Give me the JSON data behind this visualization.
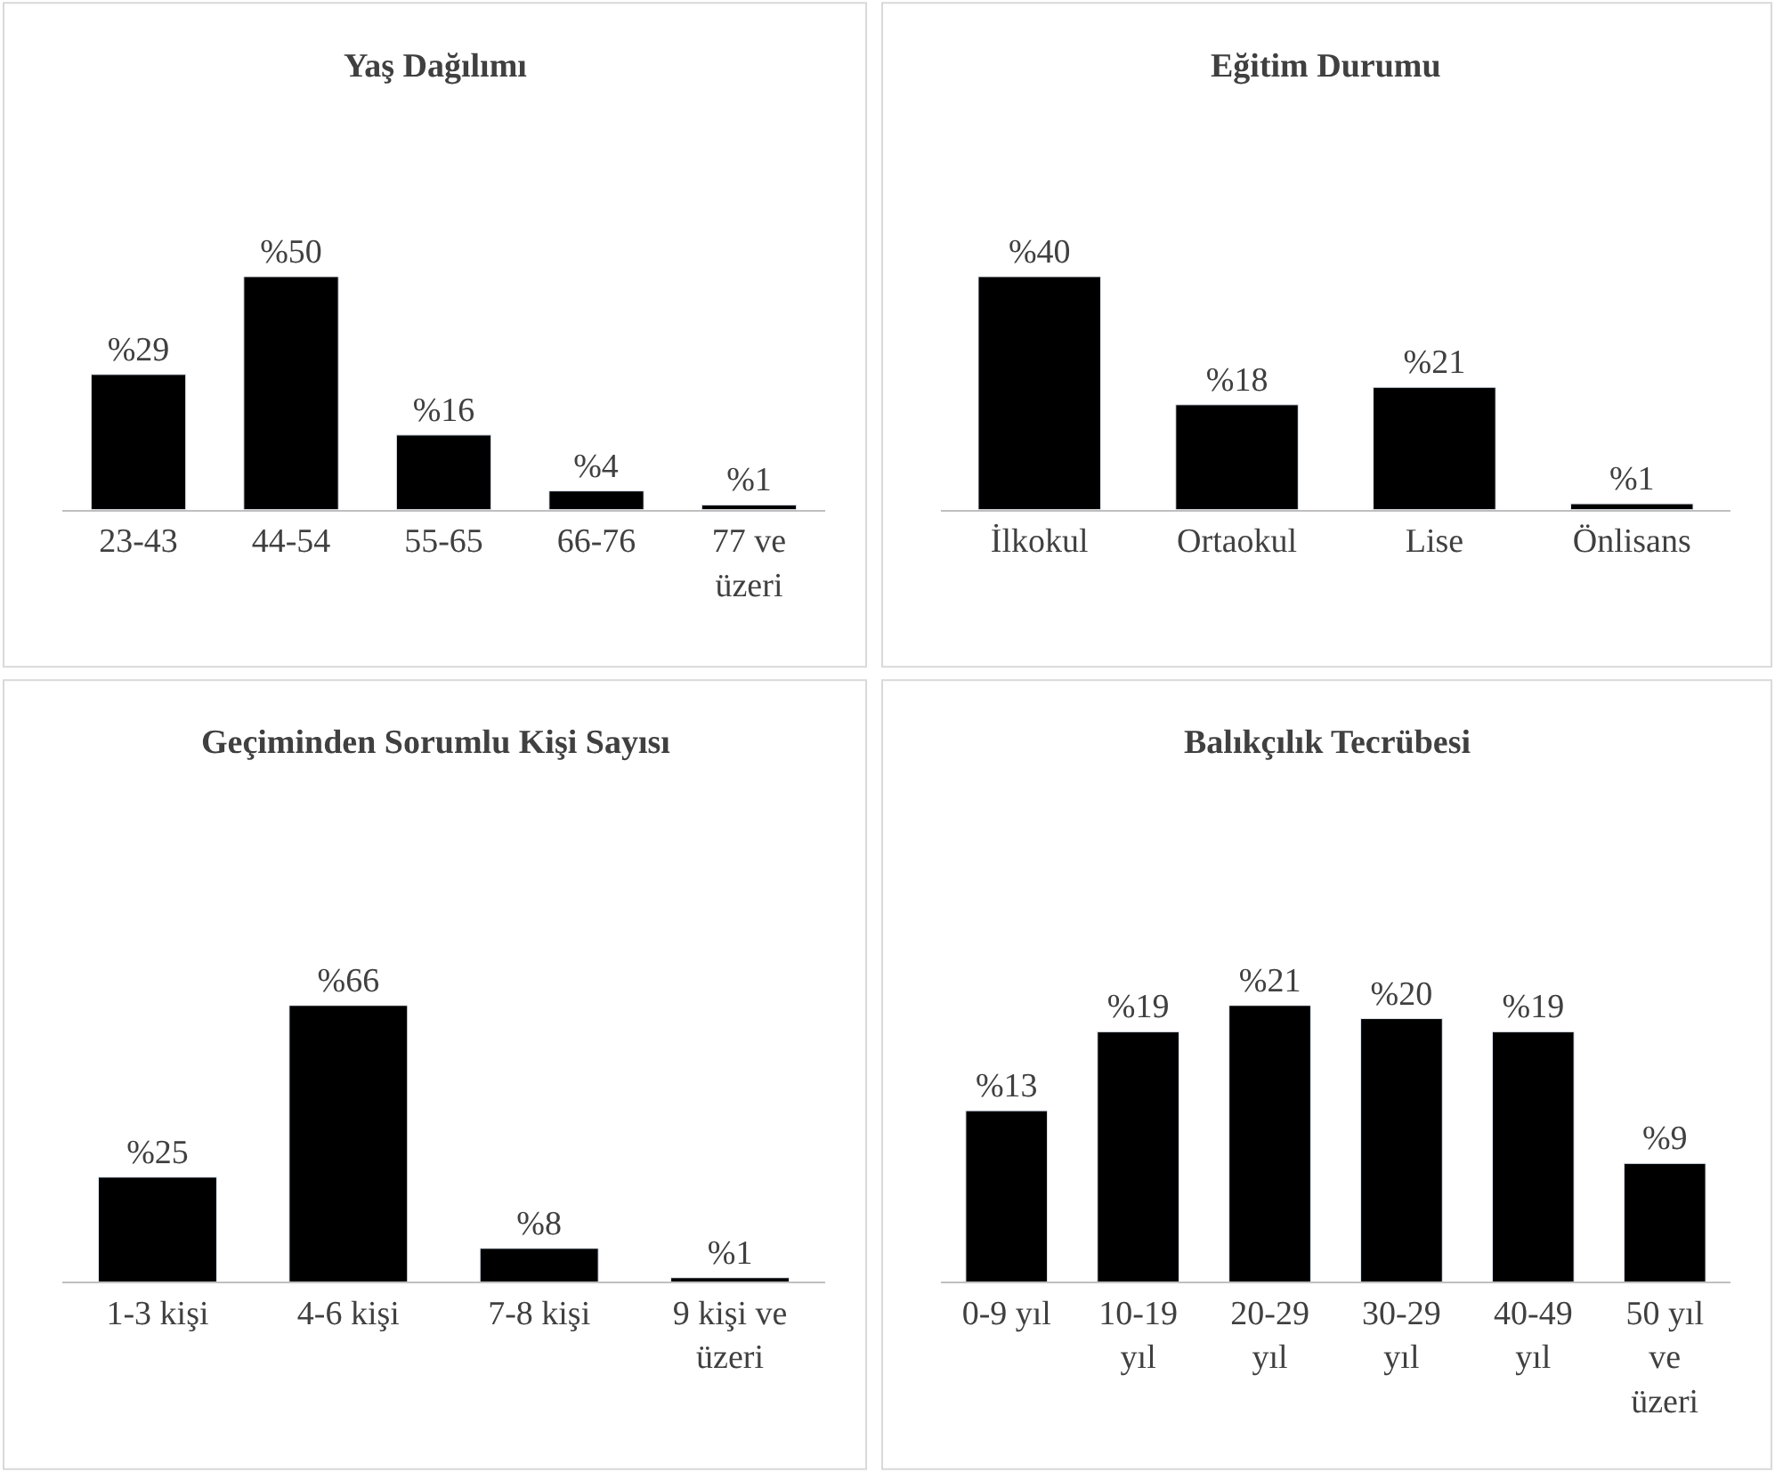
{
  "chart_data": [
    {
      "type": "bar",
      "title": "Yaş Dağılımı",
      "categories": [
        "23-43",
        "44-54",
        "55-65",
        "66-76",
        "77 ve üzeri"
      ],
      "values": [
        29,
        50,
        16,
        4,
        1
      ],
      "value_labels": [
        "%29",
        "%50",
        "%16",
        "%4",
        "%1"
      ],
      "color": "#000000"
    },
    {
      "type": "bar",
      "title": "Eğitim Durumu",
      "categories": [
        "İlkokul",
        "Ortaokul",
        "Lise",
        "Önlisans"
      ],
      "values": [
        40,
        18,
        21,
        1
      ],
      "value_labels": [
        "%40",
        "%18",
        "%21",
        "%1"
      ],
      "color": "#000000"
    },
    {
      "type": "bar",
      "title": "Geçiminden Sorumlu Kişi Sayısı",
      "categories": [
        "1-3 kişi",
        "4-6 kişi",
        "7-8 kişi",
        "9 kişi ve üzeri"
      ],
      "values": [
        25,
        66,
        8,
        1
      ],
      "value_labels": [
        "%25",
        "%66",
        "%8",
        "%1"
      ],
      "color": "#000000"
    },
    {
      "type": "bar",
      "title": "Balıkçılık Tecrübesi",
      "categories": [
        "0-9 yıl",
        "10-19 yıl",
        "20-29 yıl",
        "30-29 yıl",
        "40-49 yıl",
        "50 yıl ve üzeri"
      ],
      "values": [
        13,
        19,
        21,
        20,
        19,
        9
      ],
      "value_labels": [
        "%13",
        "%19",
        "%21",
        "%20",
        "%19",
        "%9"
      ],
      "color": "#000000"
    }
  ]
}
